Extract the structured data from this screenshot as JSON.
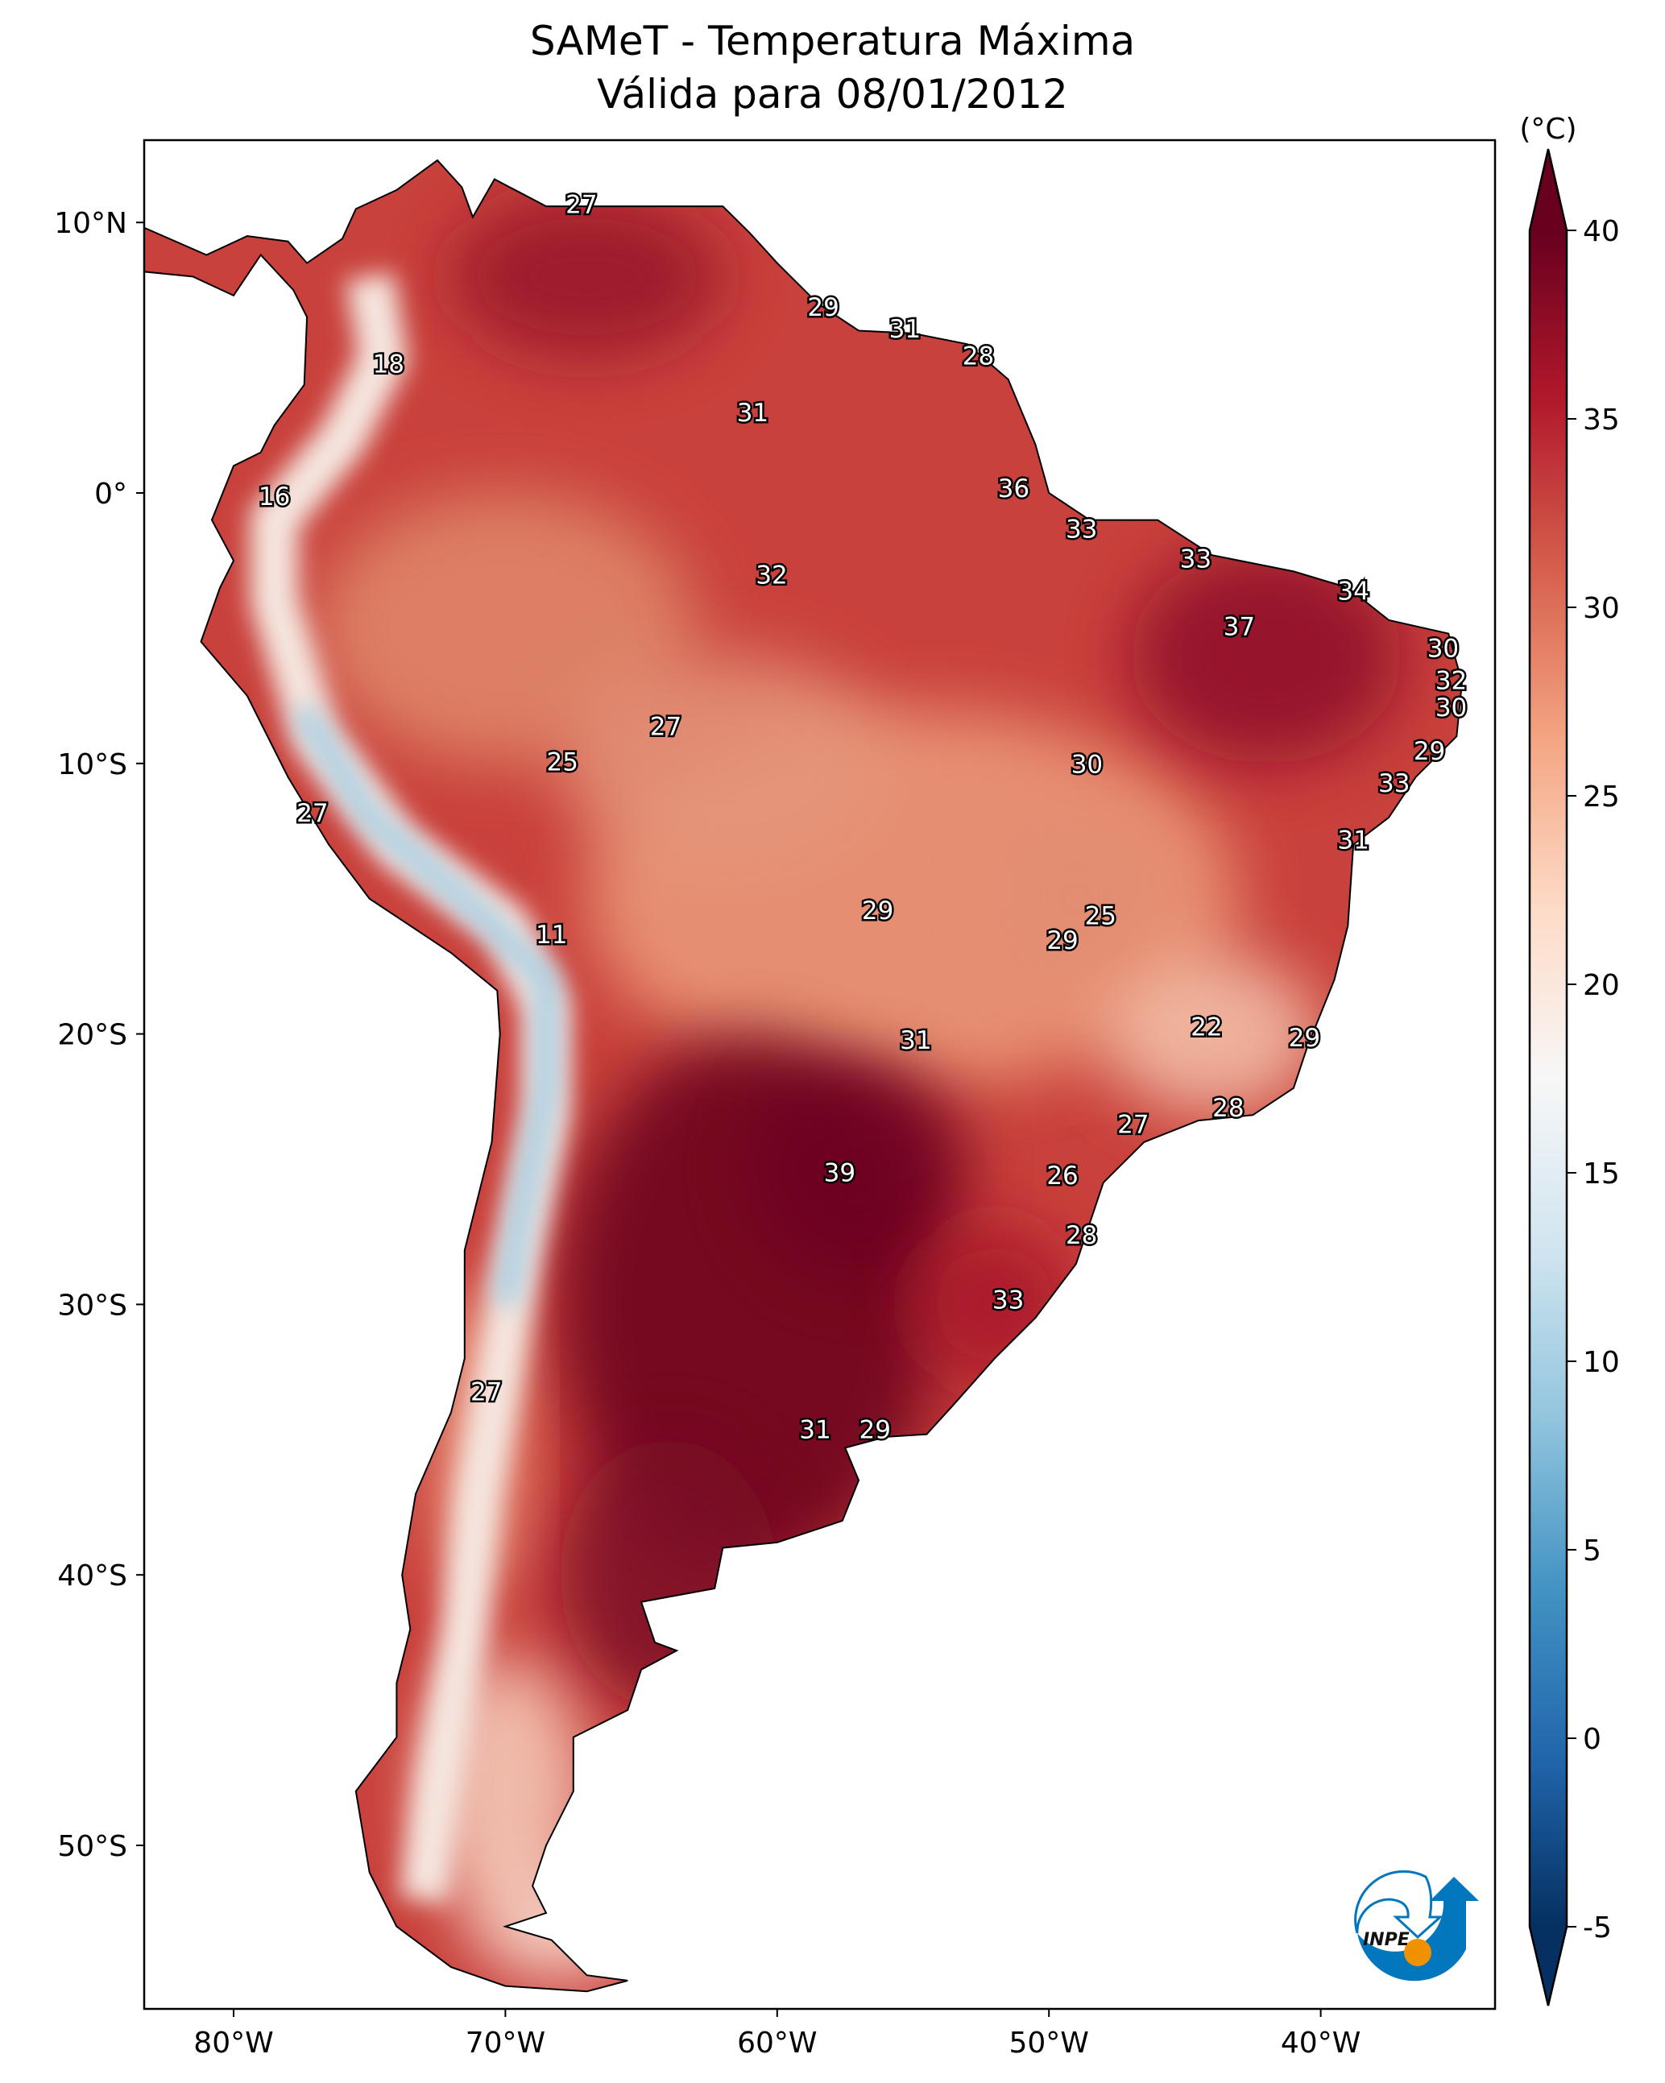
{
  "title": {
    "line1": "SAMeT - Temperatura Máxima",
    "line2": "Válida para 08/01/2012"
  },
  "logo": {
    "text": "INPE",
    "colors": {
      "blue": "#0277bd",
      "orange": "#f29100"
    }
  },
  "chart_data": {
    "type": "map",
    "projection": "plate-carree",
    "region": "South America",
    "extent_lon": [
      -83.3,
      -33.8
    ],
    "extent_lat": [
      -56,
      13
    ],
    "x_ticks": [
      {
        "lon": -80,
        "label": "80°W"
      },
      {
        "lon": -70,
        "label": "70°W"
      },
      {
        "lon": -60,
        "label": "60°W"
      },
      {
        "lon": -50,
        "label": "50°W"
      },
      {
        "lon": -40,
        "label": "40°W"
      }
    ],
    "y_ticks": [
      {
        "lat": 10,
        "label": "10°N"
      },
      {
        "lat": 0,
        "label": "0°"
      },
      {
        "lat": -10,
        "label": "10°S"
      },
      {
        "lat": -20,
        "label": "20°S"
      },
      {
        "lat": -30,
        "label": "30°S"
      },
      {
        "lat": -40,
        "label": "40°S"
      },
      {
        "lat": -50,
        "label": "50°S"
      }
    ],
    "colorbar": {
      "unit": "(°C)",
      "min": -5,
      "max": 40,
      "extend": "both",
      "colormap": "RdBu_r",
      "ticks": [
        40,
        35,
        30,
        25,
        20,
        15,
        10,
        5,
        0,
        -5
      ],
      "colors": [
        "#053061",
        "#2166ac",
        "#4393c3",
        "#92c5de",
        "#d1e5f0",
        "#f7f7f7",
        "#fddbc7",
        "#f4a582",
        "#d6604d",
        "#b2182b",
        "#67001f"
      ]
    },
    "point_labels": [
      {
        "lon": -67.2,
        "lat": 10.6,
        "value": 27
      },
      {
        "lon": -58.3,
        "lat": 6.8,
        "value": 29
      },
      {
        "lon": -55.3,
        "lat": 6.0,
        "value": 31
      },
      {
        "lon": -52.6,
        "lat": 5.0,
        "value": 28
      },
      {
        "lon": -74.3,
        "lat": 4.7,
        "value": 18
      },
      {
        "lon": -60.9,
        "lat": 2.9,
        "value": 31
      },
      {
        "lon": -78.5,
        "lat": -0.2,
        "value": 16
      },
      {
        "lon": -51.3,
        "lat": 0.1,
        "value": 36
      },
      {
        "lon": -48.8,
        "lat": -1.4,
        "value": 33
      },
      {
        "lon": -44.6,
        "lat": -2.5,
        "value": 33
      },
      {
        "lon": -60.2,
        "lat": -3.1,
        "value": 32
      },
      {
        "lon": -38.8,
        "lat": -3.7,
        "value": 34
      },
      {
        "lon": -43.0,
        "lat": -5.0,
        "value": 37
      },
      {
        "lon": -35.5,
        "lat": -5.8,
        "value": 30
      },
      {
        "lon": -35.2,
        "lat": -7.0,
        "value": 32
      },
      {
        "lon": -35.2,
        "lat": -8.0,
        "value": 30
      },
      {
        "lon": -64.1,
        "lat": -8.7,
        "value": 27
      },
      {
        "lon": -67.9,
        "lat": -10.0,
        "value": 25
      },
      {
        "lon": -48.6,
        "lat": -10.1,
        "value": 30
      },
      {
        "lon": -36.0,
        "lat": -9.6,
        "value": 29
      },
      {
        "lon": -37.3,
        "lat": -10.8,
        "value": 33
      },
      {
        "lon": -77.1,
        "lat": -11.9,
        "value": 27
      },
      {
        "lon": -38.8,
        "lat": -12.9,
        "value": 31
      },
      {
        "lon": -56.3,
        "lat": -15.5,
        "value": 29
      },
      {
        "lon": -48.1,
        "lat": -15.7,
        "value": 25
      },
      {
        "lon": -49.5,
        "lat": -16.6,
        "value": 29
      },
      {
        "lon": -68.3,
        "lat": -16.4,
        "value": 11
      },
      {
        "lon": -44.2,
        "lat": -19.8,
        "value": 22
      },
      {
        "lon": -40.6,
        "lat": -20.2,
        "value": 29
      },
      {
        "lon": -54.9,
        "lat": -20.3,
        "value": 31
      },
      {
        "lon": -43.4,
        "lat": -22.8,
        "value": 28
      },
      {
        "lon": -46.9,
        "lat": -23.4,
        "value": 27
      },
      {
        "lon": -57.7,
        "lat": -25.2,
        "value": 39
      },
      {
        "lon": -49.5,
        "lat": -25.3,
        "value": 26
      },
      {
        "lon": -48.8,
        "lat": -27.5,
        "value": 28
      },
      {
        "lon": -51.5,
        "lat": -29.9,
        "value": 33
      },
      {
        "lon": -70.7,
        "lat": -33.3,
        "value": 27
      },
      {
        "lon": -58.6,
        "lat": -34.7,
        "value": 31
      },
      {
        "lon": -56.4,
        "lat": -34.7,
        "value": 29
      }
    ]
  }
}
